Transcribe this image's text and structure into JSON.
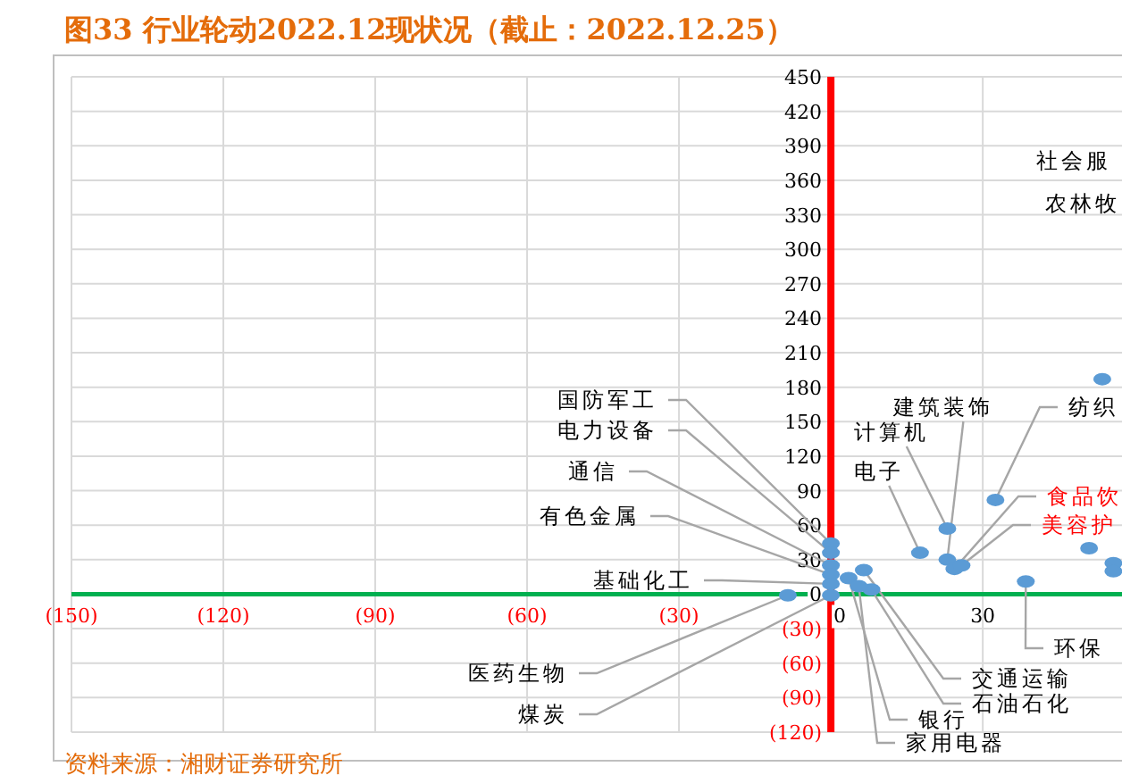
{
  "chart_data": {
    "type": "scatter",
    "title": "图33 行业轮动2022.12现状况（截止：2022.12.25）",
    "series": [
      {
        "color": "#5b9bd5",
        "x": [
          0,
          0,
          0,
          0,
          0,
          -8.5,
          0,
          6.5,
          8,
          3.5,
          5.5,
          23,
          17.6,
          23,
          32.5,
          24.4,
          25.8,
          38.5,
          51,
          53.6,
          55.8,
          55.8
        ],
        "values": [
          44,
          36,
          25,
          17,
          9,
          -1,
          -1,
          21,
          4,
          14,
          7,
          57,
          36,
          30,
          82,
          22,
          25,
          11,
          40,
          187,
          27,
          20
        ]
      }
    ],
    "xlim": [
      -150,
      57.5
    ],
    "ylim": [
      -120,
      450
    ],
    "xticks": [
      {
        "value": -150,
        "label": "(150)"
      },
      {
        "value": -120,
        "label": "(120)"
      },
      {
        "value": -90,
        "label": "(90)"
      },
      {
        "value": -60,
        "label": "(60)"
      },
      {
        "value": -30,
        "label": "(30)"
      },
      0,
      30
    ],
    "yticks": [
      {
        "value": -120,
        "label": "(120)"
      },
      {
        "value": -90,
        "label": "(90)"
      },
      {
        "value": -60,
        "label": "(60)"
      },
      {
        "value": -30,
        "label": "(30)"
      },
      0,
      30,
      60,
      90,
      120,
      150,
      180,
      210,
      240,
      270,
      300,
      330,
      360,
      390,
      420,
      450
    ],
    "grid": true,
    "marker": "circle",
    "annotations": [
      {
        "text": "国防军工",
        "x": 0,
        "y": 44
      },
      {
        "text": "电力设备",
        "x": 0,
        "y": 36
      },
      {
        "text": "通信",
        "x": 0,
        "y": 25
      },
      {
        "text": "有色金属",
        "x": 0,
        "y": 17
      },
      {
        "text": "基础化工",
        "x": 0,
        "y": 9
      },
      {
        "text": "医药生物",
        "x": -8.5,
        "y": -1
      },
      {
        "text": "煤炭",
        "x": 0,
        "y": -1
      },
      {
        "text": "交通运输",
        "x": 6.5,
        "y": 21
      },
      {
        "text": "石油石化",
        "x": 8,
        "y": 4
      },
      {
        "text": "银行",
        "x": 3.5,
        "y": 14
      },
      {
        "text": "家用电器",
        "x": 5.5,
        "y": 7
      },
      {
        "text": "计算机",
        "x": 23,
        "y": 57
      },
      {
        "text": "电子",
        "x": 17.6,
        "y": 36
      },
      {
        "text": "建筑装饰",
        "x": 23,
        "y": 30
      },
      {
        "text": "纺织",
        "x": 32.5,
        "y": 82
      },
      {
        "text": "食品饮",
        "x": 24.4,
        "y": 22
      },
      {
        "text": "美容护",
        "x": 25.8,
        "y": 25
      },
      {
        "text": "环保",
        "x": 38.5,
        "y": 11
      },
      "社会服",
      "农林牧",
      "资料来源：湘财证券研究所"
    ]
  }
}
